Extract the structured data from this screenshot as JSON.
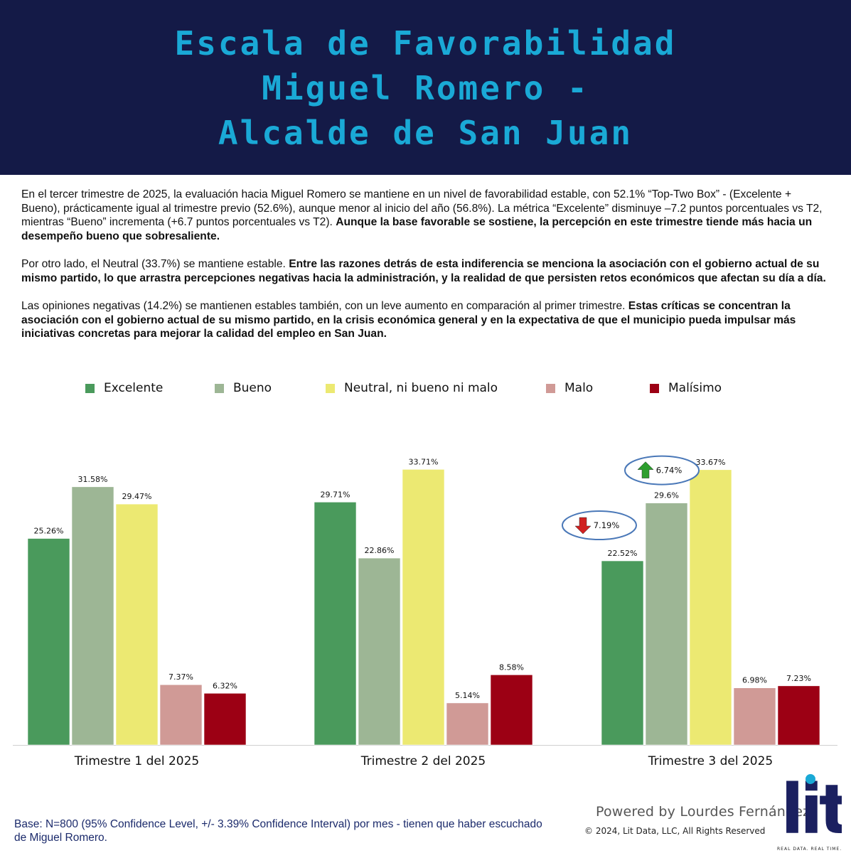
{
  "header": {
    "title_lines": [
      "Escala de Favorabilidad",
      "Miguel Romero -",
      "Alcalde de San Juan"
    ]
  },
  "paragraphs": [
    {
      "normal": "En el tercer trimestre de 2025, la evaluación hacia Miguel Romero se mantiene en un nivel de favorabilidad estable, con 52.1% “Top-Two Box” - (Excelente + Bueno), prácticamente igual al trimestre previo (52.6%), aunque menor al inicio del año (56.8%). La métrica “Excelente” disminuye –7.2 puntos porcentuales vs T2, mientras “Bueno” incrementa (+6.7 puntos porcentuales vs T2). ",
      "bold": "Aunque la base favorable se sostiene, la percepción en este trimestre tiende más hacia un desempeño bueno que sobresaliente."
    },
    {
      "normal": "Por otro lado, el Neutral (33.7%) se mantiene estable. ",
      "bold": "Entre las razones detrás de esta indiferencia se menciona la asociación con el gobierno actual de su mismo partido, lo que arrastra percepciones negativas hacia la administración, y la realidad de que persisten retos económicos que afectan su día a día."
    },
    {
      "normal": "Las opiniones negativas (14.2%) se mantienen estables también, con un leve aumento en comparación al primer trimestre. ",
      "bold": "Estas críticas se concentran la asociación con el gobierno actual de su mismo partido, en la crisis económica general y en la expectativa de que el municipio pueda impulsar más iniciativas concretas para mejorar la calidad del empleo en San Juan."
    }
  ],
  "chart_data": {
    "type": "bar",
    "title": "",
    "xlabel": "",
    "ylabel": "",
    "categories": [
      "Trimestre 1 del 2025",
      "Trimestre 2 del 2025",
      "Trimestre 3 del 2025"
    ],
    "series": [
      {
        "name": "Excelente",
        "color": "#4a9a5c",
        "values": [
          25.26,
          29.71,
          22.52
        ],
        "labels": [
          "25.26%",
          "29.71%",
          "22.52%"
        ]
      },
      {
        "name": "Bueno",
        "color": "#9db695",
        "values": [
          31.58,
          22.86,
          29.6
        ],
        "labels": [
          "31.58%",
          "22.86%",
          "29.6%"
        ]
      },
      {
        "name": "Neutral, ni bueno ni malo",
        "color": "#ece972",
        "values": [
          29.47,
          33.71,
          33.67
        ],
        "labels": [
          "29.47%",
          "33.71%",
          "33.67%"
        ]
      },
      {
        "name": "Malo",
        "color": "#d09a96",
        "values": [
          7.37,
          5.14,
          6.98
        ],
        "labels": [
          "7.37%",
          "5.14%",
          "6.98%"
        ]
      },
      {
        "name": "Malísimo",
        "color": "#9c0014",
        "values": [
          6.32,
          8.58,
          7.23
        ],
        "labels": [
          "6.32%",
          "8.58%",
          "7.23%"
        ]
      }
    ],
    "ylim": [
      0,
      36
    ],
    "grid": false,
    "legend_position": "top",
    "annotations": [
      {
        "text": "6.74%",
        "direction": "up",
        "color": "#2e9e2e",
        "series": "Bueno",
        "category": "Trimestre 3 del 2025"
      },
      {
        "text": "7.19%",
        "direction": "down",
        "color": "#d02020",
        "series": "Excelente",
        "category": "Trimestre 3 del 2025"
      }
    ]
  },
  "footer": {
    "base_note": "Base: N=800 (95% Confidence Level, +/- 3.39% Confidence Interval) por mes - tienen que haber escuchado de Miguel Romero.",
    "powered_by": "Powered by Lourdes Fernández",
    "copyright": "©  2024, Lit Data, LLC, All Rights Reserved",
    "logo_word": "lit",
    "logo_tagline": "REAL DATA. REAL TIME.",
    "logo_color": "#1b2060",
    "logo_dot_color": "#1aa9d6"
  }
}
